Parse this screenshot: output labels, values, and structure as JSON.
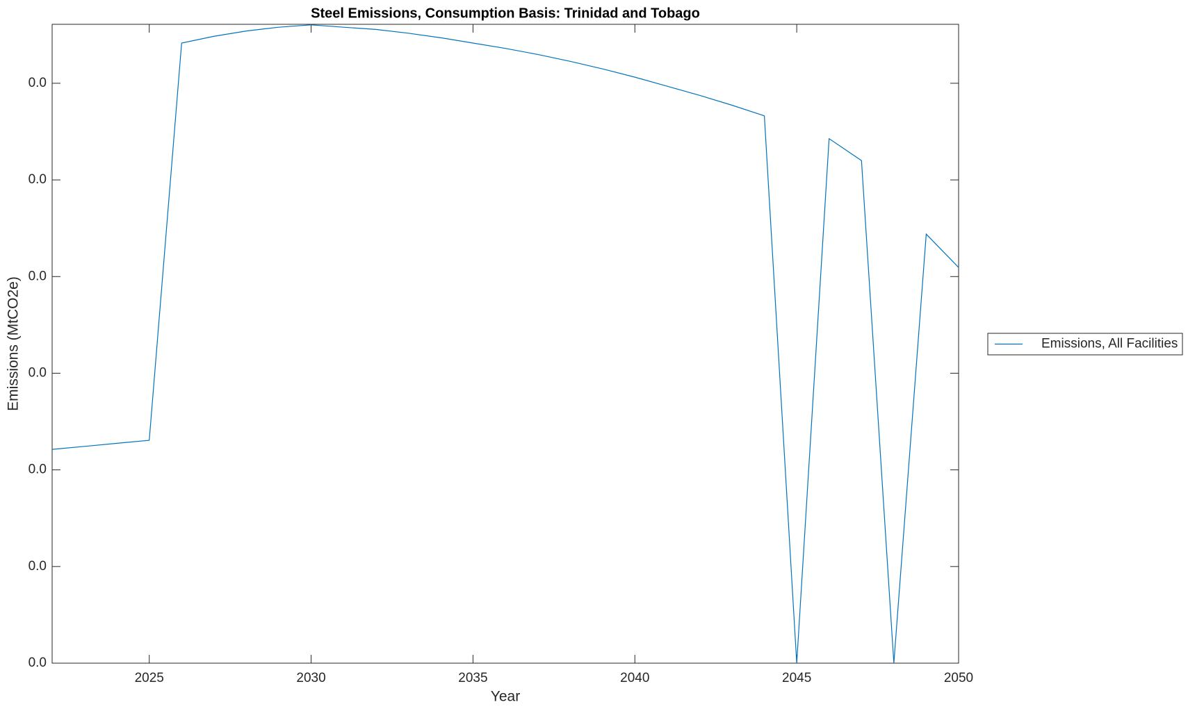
{
  "chart_data": {
    "type": "line",
    "title": "Steel Emissions, Consumption Basis: Trinidad and Tobago",
    "xlabel": "Year",
    "ylabel": "Emissions (MtCO2e)",
    "x": [
      2022,
      2023,
      2024,
      2025,
      2026,
      2027,
      2028,
      2029,
      2030,
      2031,
      2032,
      2033,
      2034,
      2035,
      2036,
      2037,
      2038,
      2039,
      2040,
      2041,
      2042,
      2043,
      2044,
      2045,
      2046,
      2047,
      2048,
      2049,
      2050
    ],
    "series": [
      {
        "name": "Emissions, All Facilities",
        "color": "#0072bd",
        "values": [
          0.02212,
          0.02243,
          0.02275,
          0.02306,
          0.06416,
          0.06486,
          0.06541,
          0.0658,
          0.06604,
          0.0658,
          0.06557,
          0.06518,
          0.06471,
          0.06416,
          0.06361,
          0.06298,
          0.06227,
          0.06149,
          0.06063,
          0.05969,
          0.05875,
          0.05773,
          0.05663,
          0,
          0.05427,
          0.052,
          0,
          0.04439,
          0.04094
        ]
      }
    ],
    "xlim": [
      2022,
      2050
    ],
    "xticks": [
      2025,
      2030,
      2035,
      2040,
      2045,
      2050
    ],
    "ylim": [
      0,
      0.0661
    ],
    "yticks": [
      {
        "value": 0,
        "label": "0.0"
      },
      {
        "value": 0.01,
        "label": "0.0"
      },
      {
        "value": 0.02,
        "label": "0.0"
      },
      {
        "value": 0.03,
        "label": "0.0"
      },
      {
        "value": 0.04,
        "label": "0.0"
      },
      {
        "value": 0.05,
        "label": "0.0"
      },
      {
        "value": 0.06,
        "label": "0.0"
      }
    ],
    "grid": false,
    "legend": "outside-right"
  }
}
